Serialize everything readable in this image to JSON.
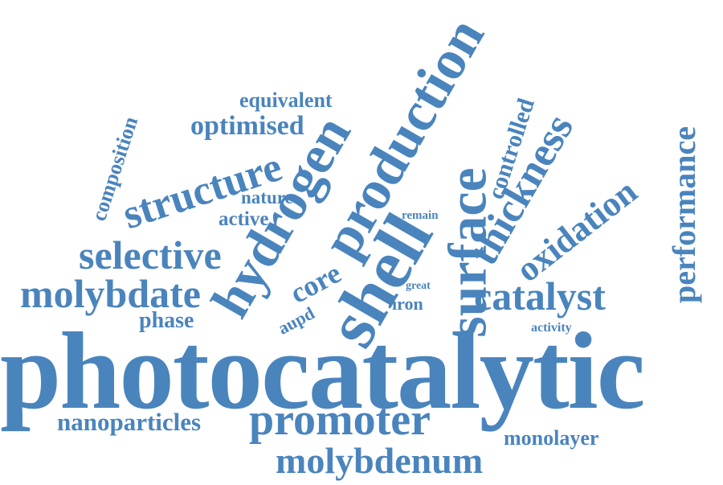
{
  "color": "#4a84bd",
  "words": {
    "photocatalytic": "photocatalytic",
    "promoter": "promoter",
    "molybdenum": "molybdenum",
    "nanoparticles": "nanoparticles",
    "monolayer": "monolayer",
    "molybdate": "molybdate",
    "selective": "selective",
    "phase": "phase",
    "structure": "structure",
    "optimised": "optimised",
    "equivalent": "equivalent",
    "composition": "composition",
    "nature": "nature",
    "active": "active",
    "hydrogen": "hydrogen",
    "production": "production",
    "shell": "shell",
    "core": "core",
    "aupd": "aupd",
    "iron": "iron",
    "great": "great",
    "remain": "remain",
    "surface": "surface",
    "thickness": "thickness",
    "controlled": "controlled",
    "catalyst": "catalyst",
    "oxidation": "oxidation",
    "performance": "performance",
    "activity": "activity"
  }
}
